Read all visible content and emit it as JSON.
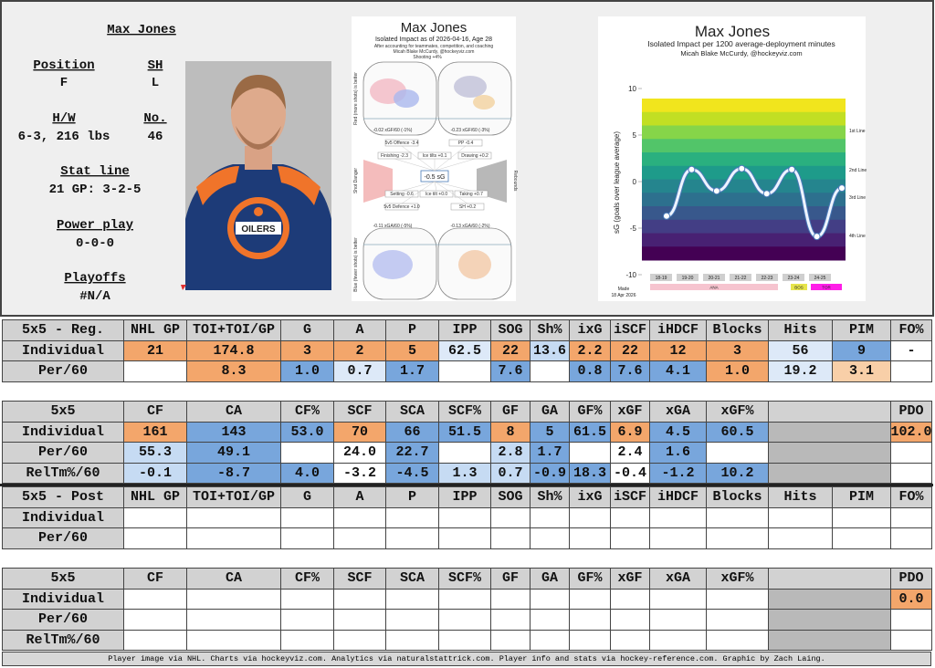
{
  "player": {
    "name": "Max Jones",
    "position_label": "Position",
    "position": "F",
    "shoots_label": "SH",
    "shoots": "L",
    "hw_label": "H/W",
    "hw": "6-3, 216 lbs",
    "number_label": "No.",
    "number": "46",
    "statline_label": "Stat line",
    "statline": "21 GP: 3-2-5",
    "pp_label": "Power play",
    "pp": "0-0-0",
    "playoffs_label": "Playoffs",
    "playoffs": "#N/A"
  },
  "impact_chart": {
    "title": "Max Jones",
    "subtitle": "Isolated Impact as of 2026-04-16, Age 28",
    "note": "After accounting for teammates, competition, and coaching",
    "credit": "Micah Blake McCurdy, @hockeyviz.com",
    "shooting": "Shooting +4%",
    "top_left": "-0.02 xGF/60 (-1%)",
    "top_right": "-0.23 xGF/60 (-3%)",
    "center": "-0.5 sG",
    "bottom_left": "-0.11 xGA/60 (-5%)",
    "bottom_right": "-0.13 xGA/60 (-2%)",
    "side_top": "Red (more shots) is better",
    "side_bottom": "Blue (fewer shots) is better",
    "side_left": "Shot Danger",
    "side_right": "Rebounds",
    "components": [
      "5v5 Offence -3.4",
      "PP -0.4",
      "Finishing -2.3",
      "Ice tilts +0.1",
      "Drawing +0.2",
      "Setting -0.6",
      "Ice tilt +0.0",
      "Taking +0.7",
      "5v5 Defence +1.0",
      "SH +0.2"
    ]
  },
  "chart_data": {
    "type": "line",
    "title": "Max Jones",
    "subtitle": "Isolated Impact per 1200 average-deployment minutes",
    "credit": "Micah Blake McCurdy, @hockeyviz.com",
    "y_label": "sG (goals over league average)",
    "categories": [
      "18-19",
      "19-20",
      "20-21",
      "21-22",
      "22-23",
      "23-24",
      "24-25",
      null
    ],
    "values": [
      -3.7,
      1.3,
      -1.0,
      1.4,
      -1.3,
      1.3,
      -5.9,
      -0.7
    ],
    "color": "#4a7ab8",
    "ylim": [
      -10,
      10
    ],
    "yticks": [
      10,
      5,
      0,
      -5,
      -10
    ],
    "line_labels": [
      "1st Line",
      "2nd Line",
      "3rd Line",
      "4th Line"
    ],
    "teams": [
      {
        "name": "ANA",
        "color": "#f6c4cf"
      },
      {
        "name": "BOS",
        "color": "#e6e44a"
      },
      {
        "name": "TOR",
        "color": "#ff1ee8"
      }
    ],
    "made": "Made",
    "made_date": "18 Apr 2026"
  },
  "tables": [
    {
      "header": [
        "5x5 - Reg.",
        "NHL GP",
        "TOI+TOI/GP",
        "G",
        "A",
        "P",
        "IPP",
        "SOG",
        "Sh%",
        "ixG",
        "iSCF",
        "iHDCF",
        "Blocks",
        "Hits",
        "PIM",
        "FO%"
      ],
      "rows": [
        {
          "label": "Individual",
          "cells": [
            "21",
            "174.8",
            "3",
            "2",
            "5",
            "62.5",
            "22",
            "13.6",
            "2.2",
            "22",
            "12",
            "3",
            "56",
            "9",
            "-"
          ],
          "colors": [
            "o",
            "o",
            "o",
            "o",
            "o",
            "pb",
            "o",
            "lb",
            "o",
            "o",
            "o",
            "o",
            "pb",
            "b",
            "w"
          ]
        },
        {
          "label": "Per/60",
          "cells": [
            null,
            "8.3",
            "1.0",
            "0.7",
            "1.7",
            null,
            "7.6",
            null,
            "0.8",
            "7.6",
            "4.1",
            "1.0",
            "19.2",
            "3.1",
            null
          ],
          "colors": [
            "w",
            "o",
            "b",
            "pb",
            "b",
            "w",
            "b",
            "w",
            "b",
            "b",
            "b",
            "o",
            "pb",
            "lo",
            "w"
          ]
        }
      ]
    },
    {
      "header": [
        "5x5",
        "CF",
        "CA",
        "CF%",
        "SCF",
        "SCA",
        "SCF%",
        "GF",
        "GA",
        "GF%",
        "xGF",
        "xGA",
        "xGF%",
        "PDO"
      ],
      "rows": [
        {
          "label": "Individual",
          "cells": [
            "161",
            "143",
            "53.0",
            "70",
            "66",
            "51.5",
            "8",
            "5",
            "61.5",
            "6.9",
            "4.5",
            "60.5",
            "102.0"
          ],
          "colors": [
            "o",
            "b",
            "b",
            "o",
            "b",
            "b",
            "o",
            "b",
            "b",
            "o",
            "b",
            "b",
            "o"
          ]
        },
        {
          "label": "Per/60",
          "cells": [
            "55.3",
            "49.1",
            null,
            "24.0",
            "22.7",
            null,
            "2.8",
            "1.7",
            null,
            "2.4",
            "1.6",
            null,
            null
          ],
          "colors": [
            "lb",
            "b",
            "w",
            "w",
            "b",
            "w",
            "lb",
            "b",
            "w",
            "w",
            "b",
            "w",
            "w"
          ]
        },
        {
          "label": "RelTm%/60",
          "cells": [
            "-0.1",
            "-8.7",
            "4.0",
            "-3.2",
            "-4.5",
            "1.3",
            "0.7",
            "-0.9",
            "18.3",
            "-0.4",
            "-1.2",
            "10.2",
            null
          ],
          "colors": [
            "lb",
            "b",
            "b",
            "w",
            "b",
            "lb",
            "lb",
            "b",
            "b",
            "w",
            "b",
            "b",
            "w"
          ]
        }
      ]
    },
    {
      "header": [
        "5x5 - Post",
        "NHL GP",
        "TOI+TOI/GP",
        "G",
        "A",
        "P",
        "IPP",
        "SOG",
        "Sh%",
        "ixG",
        "iSCF",
        "iHDCF",
        "Blocks",
        "Hits",
        "PIM",
        "FO%"
      ],
      "rows": [
        {
          "label": "Individual",
          "cells": [
            null,
            null,
            null,
            null,
            null,
            null,
            null,
            null,
            null,
            null,
            null,
            null,
            null,
            null,
            null
          ],
          "colors": [
            "w",
            "w",
            "w",
            "w",
            "w",
            "w",
            "w",
            "w",
            "w",
            "w",
            "w",
            "w",
            "w",
            "w",
            "w"
          ]
        },
        {
          "label": "Per/60",
          "cells": [
            null,
            null,
            null,
            null,
            null,
            null,
            null,
            null,
            null,
            null,
            null,
            null,
            null,
            null,
            null
          ],
          "colors": [
            "w",
            "w",
            "w",
            "w",
            "w",
            "w",
            "w",
            "w",
            "w",
            "w",
            "w",
            "w",
            "w",
            "w",
            "w"
          ]
        }
      ]
    },
    {
      "header": [
        "5x5",
        "CF",
        "CA",
        "CF%",
        "SCF",
        "SCA",
        "SCF%",
        "GF",
        "GA",
        "GF%",
        "xGF",
        "xGA",
        "xGF%",
        "PDO"
      ],
      "rows": [
        {
          "label": "Individual",
          "cells": [
            null,
            null,
            null,
            null,
            null,
            null,
            null,
            null,
            null,
            null,
            null,
            null,
            "0.0"
          ],
          "colors": [
            "w",
            "w",
            "w",
            "w",
            "w",
            "w",
            "w",
            "w",
            "w",
            "w",
            "w",
            "w",
            "o"
          ]
        },
        {
          "label": "Per/60",
          "cells": [
            null,
            null,
            null,
            null,
            null,
            null,
            null,
            null,
            null,
            null,
            null,
            null,
            null
          ],
          "colors": [
            "w",
            "w",
            "w",
            "w",
            "w",
            "w",
            "w",
            "w",
            "w",
            "w",
            "w",
            "w",
            "w"
          ]
        },
        {
          "label": "RelTm%/60",
          "cells": [
            null,
            null,
            null,
            null,
            null,
            null,
            null,
            null,
            null,
            null,
            null,
            null,
            null
          ],
          "colors": [
            "w",
            "w",
            "w",
            "w",
            "w",
            "w",
            "w",
            "w",
            "w",
            "w",
            "w",
            "w",
            "w"
          ]
        }
      ]
    }
  ],
  "footer": "Player image via NHL. Charts via hockeyviz.com. Analytics via naturalstattrick.com. Player info and stats via hockey-reference.com. Graphic by Zach Laing."
}
